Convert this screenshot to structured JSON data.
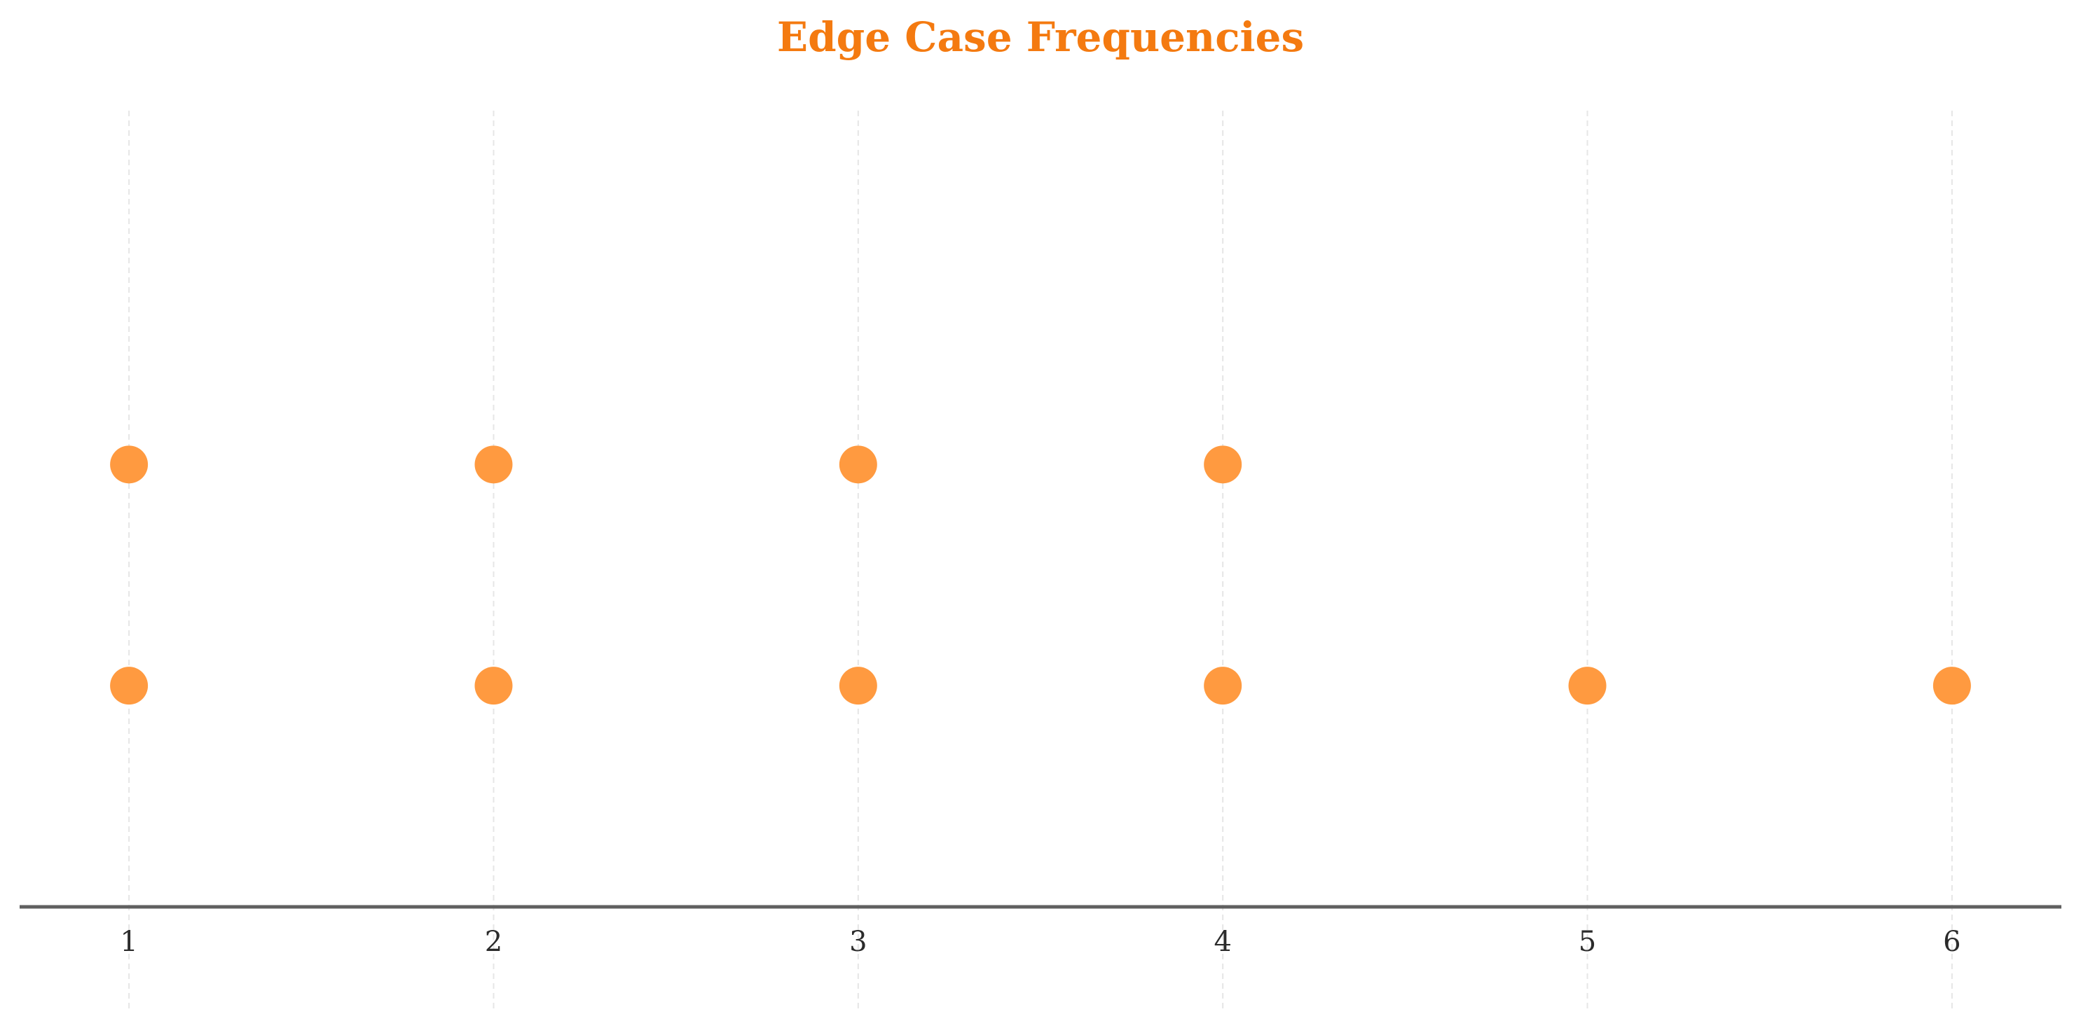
{
  "chart_data": {
    "type": "scatter",
    "title": "Edge Case Frequencies",
    "xlabel": "",
    "ylabel": "",
    "xlim": [
      0.7,
      6.3
    ],
    "ylim": [
      0,
      3.6
    ],
    "x_ticks": [
      1,
      2,
      3,
      4,
      5,
      6
    ],
    "x_tick_labels": [
      "1",
      "2",
      "3",
      "4",
      "5",
      "6"
    ],
    "y_axis_visible": false,
    "grid": "vertical dashed",
    "legend": "none",
    "points": [
      {
        "x": 1,
        "y": 1
      },
      {
        "x": 2,
        "y": 1
      },
      {
        "x": 3,
        "y": 1
      },
      {
        "x": 4,
        "y": 1
      },
      {
        "x": 5,
        "y": 1
      },
      {
        "x": 6,
        "y": 1
      },
      {
        "x": 1,
        "y": 2
      },
      {
        "x": 2,
        "y": 2
      },
      {
        "x": 3,
        "y": 2
      },
      {
        "x": 4,
        "y": 2
      }
    ]
  },
  "colors": {
    "title": "#f47a10",
    "marker": "#ff9a40",
    "axis": "#606060",
    "grid": "#e6e6e6",
    "tick_label": "#2b2b2b"
  }
}
